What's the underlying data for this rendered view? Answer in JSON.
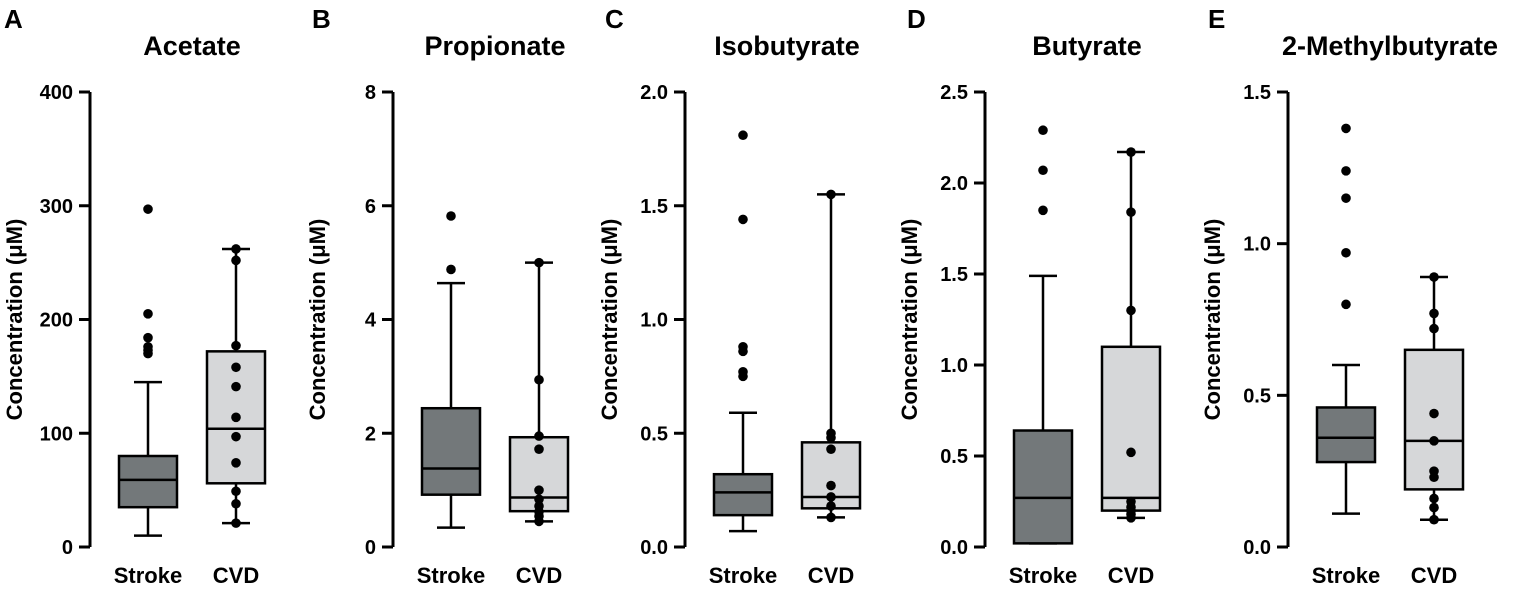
{
  "colors": {
    "stroke_box": "#73787a",
    "cvd_box": "#d6d7d9",
    "ink": "#000000"
  },
  "chart_data": [
    {
      "type": "box",
      "panel": "A",
      "title": "Acetate",
      "ylabel": "Concentration (μM)",
      "ylim": [
        0,
        400
      ],
      "yticks": [
        0,
        100,
        200,
        300,
        400
      ],
      "yticklabels": [
        "0",
        "100",
        "200",
        "300",
        "400"
      ],
      "categories": [
        "Stroke",
        "CVD"
      ],
      "series": [
        {
          "name": "Stroke",
          "whisker_low": 10,
          "q1": 35,
          "median": 59,
          "q3": 80,
          "whisker_high": 145,
          "points": [
            170,
            173,
            176,
            184,
            205,
            297
          ]
        },
        {
          "name": "CVD",
          "whisker_low": 21,
          "q1": 56,
          "median": 104,
          "q3": 172,
          "whisker_high": 262,
          "points": [
            21,
            38,
            49,
            74,
            97,
            114,
            141,
            158,
            177,
            252,
            262
          ]
        }
      ]
    },
    {
      "type": "box",
      "panel": "B",
      "title": "Propionate",
      "ylabel": "Concentration (μM)",
      "ylim": [
        0,
        8
      ],
      "yticks": [
        0,
        2,
        4,
        6,
        8
      ],
      "yticklabels": [
        "0",
        "2",
        "4",
        "6",
        "8"
      ],
      "categories": [
        "Stroke",
        "CVD"
      ],
      "series": [
        {
          "name": "Stroke",
          "whisker_low": 0.34,
          "q1": 0.92,
          "median": 1.38,
          "q3": 2.44,
          "whisker_high": 4.64,
          "points": [
            4.88,
            5.82
          ]
        },
        {
          "name": "CVD",
          "whisker_low": 0.45,
          "q1": 0.63,
          "median": 0.87,
          "q3": 1.93,
          "whisker_high": 5.0,
          "points": [
            0.45,
            0.54,
            0.62,
            0.72,
            0.84,
            1.0,
            1.72,
            1.95,
            2.94,
            5.0
          ]
        }
      ]
    },
    {
      "type": "box",
      "panel": "C",
      "title": "Isobutyrate",
      "ylabel": "Concentration (μM)",
      "ylim": [
        0,
        2.0
      ],
      "yticks": [
        0,
        0.5,
        1.0,
        1.5,
        2.0
      ],
      "yticklabels": [
        "0.0",
        "0.5",
        "1.0",
        "1.5",
        "2.0"
      ],
      "categories": [
        "Stroke",
        "CVD"
      ],
      "series": [
        {
          "name": "Stroke",
          "whisker_low": 0.07,
          "q1": 0.14,
          "median": 0.24,
          "q3": 0.32,
          "whisker_high": 0.59,
          "points": [
            0.75,
            0.77,
            0.86,
            0.88,
            1.44,
            1.81
          ]
        },
        {
          "name": "CVD",
          "whisker_low": 0.13,
          "q1": 0.17,
          "median": 0.22,
          "q3": 0.46,
          "whisker_high": 1.55,
          "points": [
            0.13,
            0.18,
            0.22,
            0.27,
            0.43,
            0.48,
            0.5,
            1.55
          ]
        }
      ]
    },
    {
      "type": "box",
      "panel": "D",
      "title": "Butyrate",
      "ylabel": "Concentration (μM)",
      "ylim": [
        0,
        2.5
      ],
      "yticks": [
        0,
        0.5,
        1.0,
        1.5,
        2.0,
        2.5
      ],
      "yticklabels": [
        "0.0",
        "0.5",
        "1.0",
        "1.5",
        "2.0",
        "2.5"
      ],
      "categories": [
        "Stroke",
        "CVD"
      ],
      "series": [
        {
          "name": "Stroke",
          "whisker_low": 0.02,
          "q1": 0.02,
          "median": 0.27,
          "q3": 0.64,
          "whisker_high": 1.49,
          "points": [
            1.85,
            2.07,
            2.29
          ]
        },
        {
          "name": "CVD",
          "whisker_low": 0.16,
          "q1": 0.2,
          "median": 0.27,
          "q3": 1.1,
          "whisker_high": 2.17,
          "points": [
            0.16,
            0.18,
            0.2,
            0.22,
            0.25,
            0.52,
            1.3,
            1.84,
            2.17
          ]
        }
      ]
    },
    {
      "type": "box",
      "panel": "E",
      "title": "2-Methylbutyrate",
      "ylabel": "Concentration (μM)",
      "ylim": [
        0,
        1.5
      ],
      "yticks": [
        0,
        0.5,
        1.0,
        1.5
      ],
      "yticklabels": [
        "0.0",
        "0.5",
        "1.0",
        "1.5"
      ],
      "categories": [
        "Stroke",
        "CVD"
      ],
      "series": [
        {
          "name": "Stroke",
          "whisker_low": 0.11,
          "q1": 0.28,
          "median": 0.36,
          "q3": 0.46,
          "whisker_high": 0.6,
          "points": [
            0.8,
            0.97,
            1.15,
            1.24,
            1.38
          ]
        },
        {
          "name": "CVD",
          "whisker_low": 0.09,
          "q1": 0.19,
          "median": 0.35,
          "q3": 0.65,
          "whisker_high": 0.89,
          "points": [
            0.09,
            0.13,
            0.16,
            0.23,
            0.25,
            0.35,
            0.44,
            0.72,
            0.77,
            0.89
          ]
        }
      ]
    }
  ]
}
